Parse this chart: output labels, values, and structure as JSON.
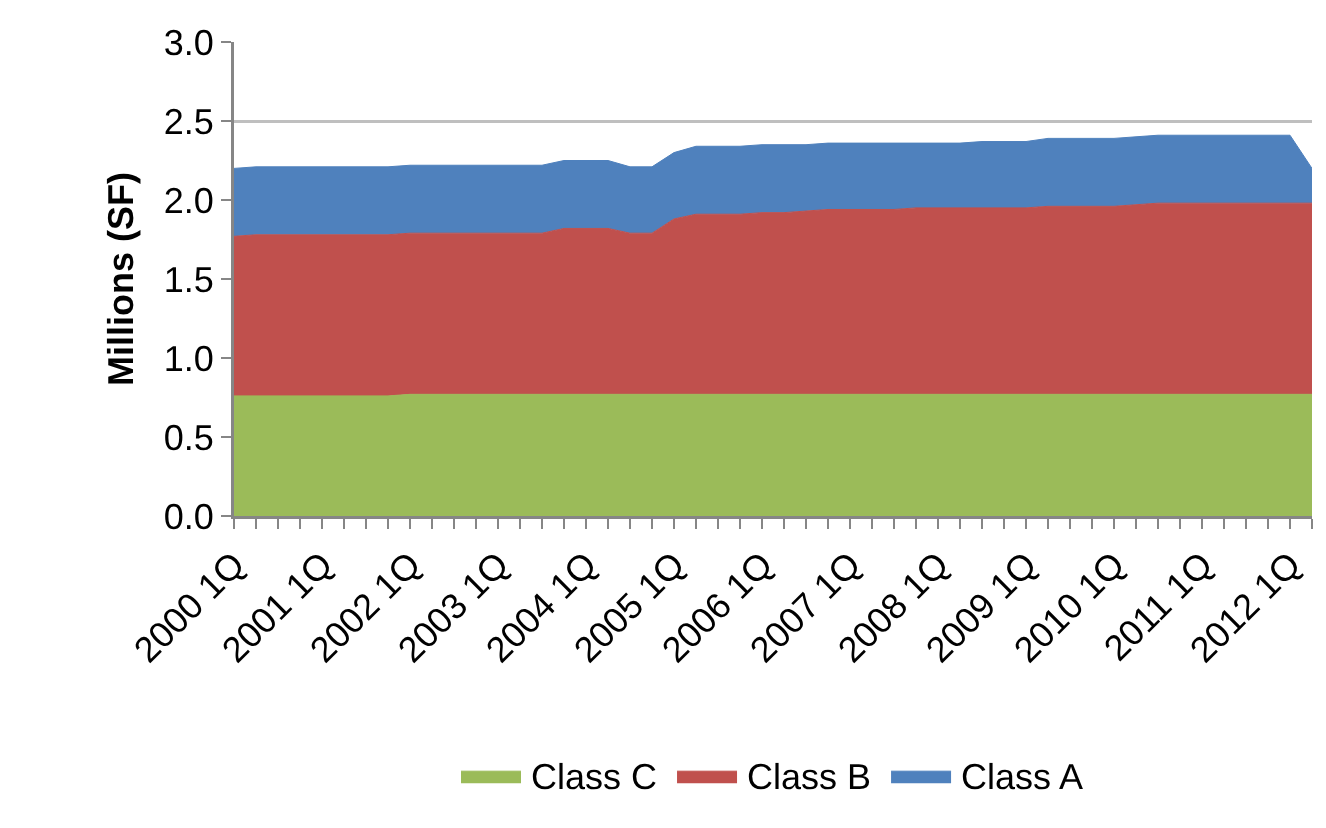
{
  "chart_data": {
    "type": "area",
    "stacked": true,
    "ylabel": "Millions (SF)",
    "categories": [
      "2000 1Q",
      null,
      null,
      null,
      "2001 1Q",
      null,
      null,
      null,
      "2002 1Q",
      null,
      null,
      null,
      "2003 1Q",
      null,
      null,
      null,
      "2004 1Q",
      null,
      null,
      null,
      "2005 1Q",
      null,
      null,
      null,
      "2006 1Q",
      null,
      null,
      null,
      "2007 1Q",
      null,
      null,
      null,
      "2008 1Q",
      null,
      null,
      null,
      "2009 1Q",
      null,
      null,
      null,
      "2010 1Q",
      null,
      null,
      null,
      "2011 1Q",
      null,
      null,
      null,
      "2012 1Q",
      null
    ],
    "series": [
      {
        "name": "Class C",
        "color": "#9bbb59",
        "values": [
          0.76,
          0.76,
          0.76,
          0.76,
          0.76,
          0.76,
          0.76,
          0.76,
          0.77,
          0.77,
          0.77,
          0.77,
          0.77,
          0.77,
          0.77,
          0.77,
          0.77,
          0.77,
          0.77,
          0.77,
          0.77,
          0.77,
          0.77,
          0.77,
          0.77,
          0.77,
          0.77,
          0.77,
          0.77,
          0.77,
          0.77,
          0.77,
          0.77,
          0.77,
          0.77,
          0.77,
          0.77,
          0.77,
          0.77,
          0.77,
          0.77,
          0.77,
          0.77,
          0.77,
          0.77,
          0.77,
          0.77,
          0.77,
          0.77,
          0.77
        ]
      },
      {
        "name": "Class B",
        "color": "#c0504d",
        "values": [
          1.01,
          1.02,
          1.02,
          1.02,
          1.02,
          1.02,
          1.02,
          1.02,
          1.02,
          1.02,
          1.02,
          1.02,
          1.02,
          1.02,
          1.02,
          1.05,
          1.05,
          1.05,
          1.02,
          1.02,
          1.11,
          1.14,
          1.14,
          1.14,
          1.15,
          1.15,
          1.16,
          1.17,
          1.17,
          1.17,
          1.17,
          1.18,
          1.18,
          1.18,
          1.18,
          1.18,
          1.18,
          1.19,
          1.19,
          1.19,
          1.19,
          1.2,
          1.21,
          1.21,
          1.21,
          1.21,
          1.21,
          1.21,
          1.21,
          1.21
        ]
      },
      {
        "name": "Class A",
        "color": "#4f81bd",
        "values": [
          0.43,
          0.43,
          0.43,
          0.43,
          0.43,
          0.43,
          0.43,
          0.43,
          0.43,
          0.43,
          0.43,
          0.43,
          0.43,
          0.43,
          0.43,
          0.43,
          0.43,
          0.43,
          0.42,
          0.42,
          0.42,
          0.43,
          0.43,
          0.43,
          0.43,
          0.43,
          0.42,
          0.42,
          0.42,
          0.42,
          0.42,
          0.41,
          0.41,
          0.41,
          0.42,
          0.42,
          0.42,
          0.43,
          0.43,
          0.43,
          0.43,
          0.43,
          0.43,
          0.43,
          0.43,
          0.43,
          0.43,
          0.43,
          0.43,
          0.22
        ]
      }
    ],
    "ylim": [
      0,
      3
    ],
    "yticks": [
      {
        "value": 0,
        "label": "0.0"
      },
      {
        "value": 0.5,
        "label": "0.5"
      },
      {
        "value": 1,
        "label": "1.0"
      },
      {
        "value": 1.5,
        "label": "1.5"
      },
      {
        "value": 2,
        "label": "2.0"
      },
      {
        "value": 2.5,
        "label": "2.5"
      },
      {
        "value": 3,
        "label": "3.0"
      }
    ],
    "grid": "y",
    "legend": "bottom"
  }
}
